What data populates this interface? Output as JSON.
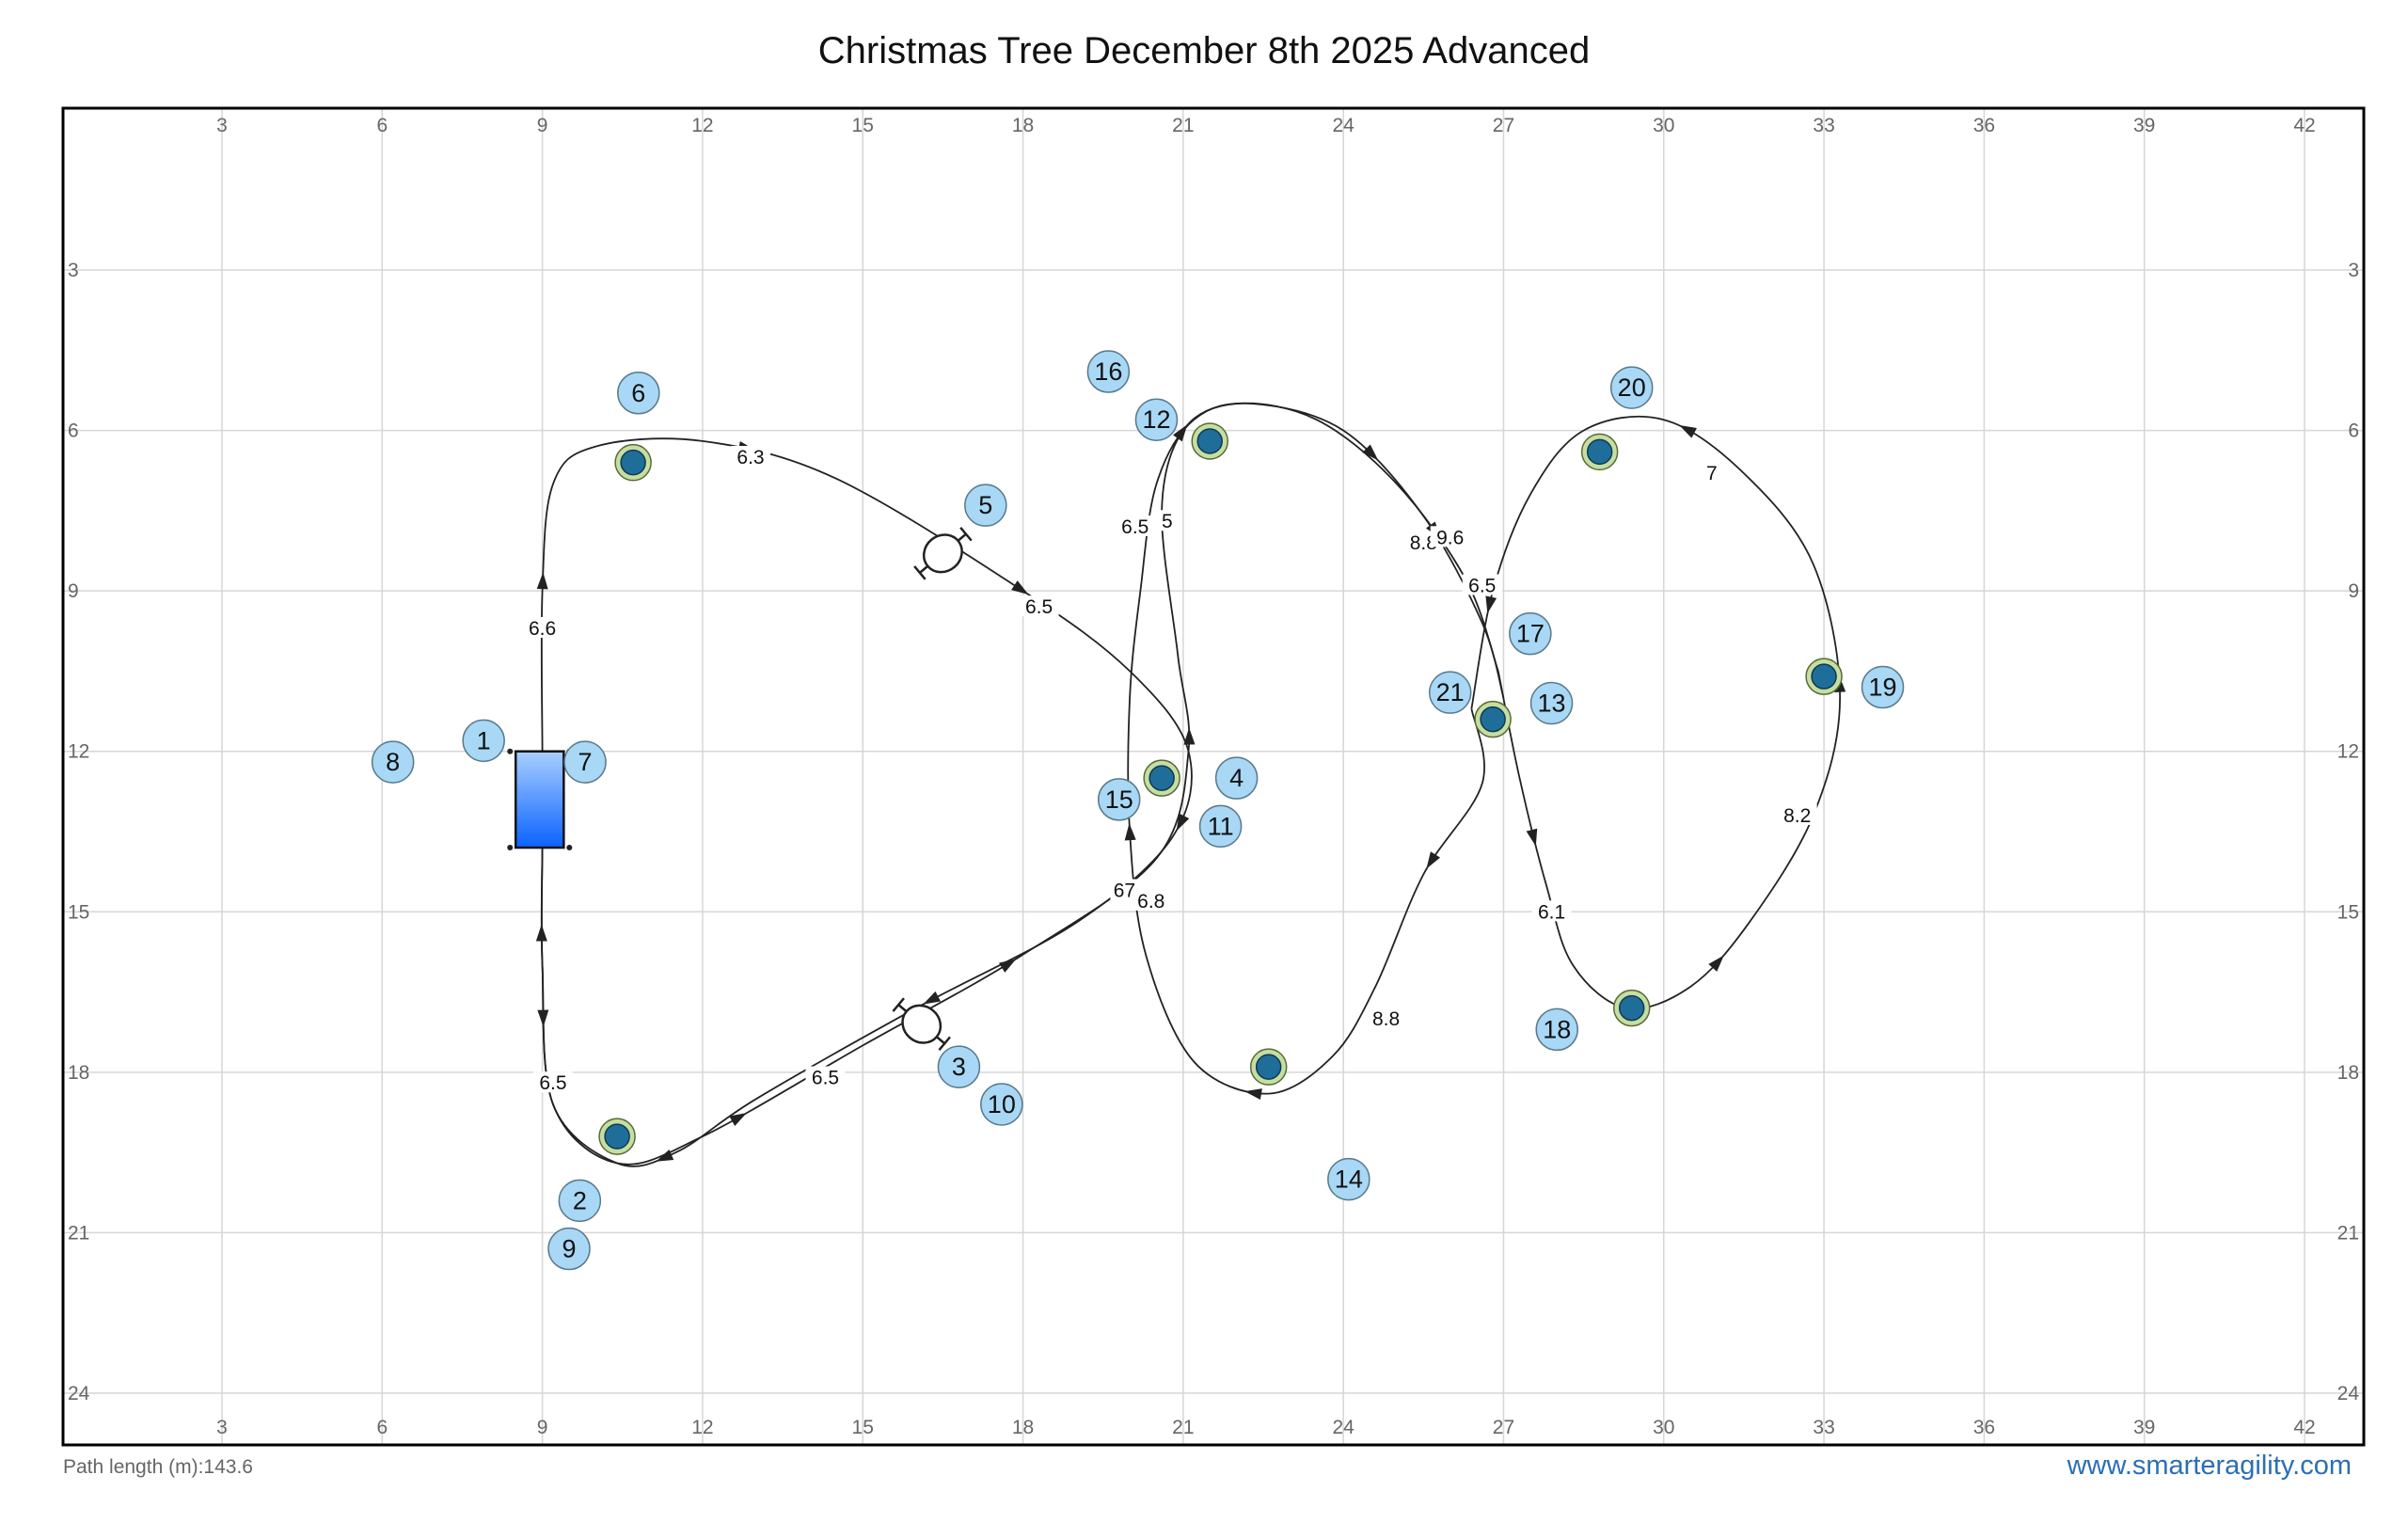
{
  "title": "Christmas Tree December 8th 2025 Advanced",
  "footer": {
    "path_length_label": "Path length (m):",
    "path_length_value": "143.6",
    "site": "www.smarteragility.com"
  },
  "colors": {
    "grid": "#d6d6d6",
    "border": "#000000",
    "number_fill": "#a8d8f5",
    "number_stroke": "#5a7a8a",
    "pole_outer": "#c8dea0",
    "pole_inner": "#1f6e99",
    "path": "#222222",
    "tunnel_top": "#a9cfff",
    "tunnel_bottom": "#0a62ff",
    "link": "#2a6fb5"
  },
  "field": {
    "x_range": [
      0,
      43
    ],
    "y_range": [
      0,
      25
    ],
    "tick_labels_x": [
      "3",
      "6",
      "9",
      "12",
      "15",
      "18",
      "21",
      "24",
      "27",
      "30",
      "33",
      "36",
      "39",
      "42"
    ],
    "tick_labels_y": [
      "3",
      "6",
      "9",
      "12",
      "15",
      "18",
      "21",
      "24"
    ]
  },
  "numbers": [
    {
      "label": "1",
      "x": 7.9,
      "y": 11.8
    },
    {
      "label": "2",
      "x": 9.7,
      "y": 20.4
    },
    {
      "label": "3",
      "x": 16.8,
      "y": 17.9
    },
    {
      "label": "4",
      "x": 22.0,
      "y": 12.5
    },
    {
      "label": "5",
      "x": 17.3,
      "y": 7.4
    },
    {
      "label": "6",
      "x": 10.8,
      "y": 5.3
    },
    {
      "label": "7",
      "x": 9.8,
      "y": 12.2
    },
    {
      "label": "8",
      "x": 6.2,
      "y": 12.2
    },
    {
      "label": "9",
      "x": 9.5,
      "y": 21.3
    },
    {
      "label": "10",
      "x": 17.6,
      "y": 18.6
    },
    {
      "label": "11",
      "x": 21.7,
      "y": 13.4
    },
    {
      "label": "12",
      "x": 20.5,
      "y": 5.8
    },
    {
      "label": "13",
      "x": 27.9,
      "y": 11.1
    },
    {
      "label": "14",
      "x": 24.1,
      "y": 20.0
    },
    {
      "label": "15",
      "x": 19.8,
      "y": 12.9
    },
    {
      "label": "16",
      "x": 19.6,
      "y": 4.9
    },
    {
      "label": "17",
      "x": 27.5,
      "y": 9.8
    },
    {
      "label": "18",
      "x": 28.0,
      "y": 17.2
    },
    {
      "label": "19",
      "x": 34.1,
      "y": 10.8
    },
    {
      "label": "20",
      "x": 29.4,
      "y": 5.2
    },
    {
      "label": "21",
      "x": 26.0,
      "y": 10.9
    }
  ],
  "poles": [
    {
      "x": 10.7,
      "y": 6.6
    },
    {
      "x": 21.5,
      "y": 6.2
    },
    {
      "x": 28.8,
      "y": 6.4
    },
    {
      "x": 20.6,
      "y": 12.5
    },
    {
      "x": 26.8,
      "y": 11.4
    },
    {
      "x": 33.0,
      "y": 10.6
    },
    {
      "x": 10.4,
      "y": 19.2
    },
    {
      "x": 22.6,
      "y": 17.9
    },
    {
      "x": 29.4,
      "y": 16.8
    }
  ],
  "jumps": [
    {
      "x": 16.5,
      "y": 8.3,
      "angle": -40
    },
    {
      "x": 16.1,
      "y": 17.1,
      "angle": 40
    }
  ],
  "tunnel": {
    "x1": 8.5,
    "y1": 12.0,
    "x2": 9.4,
    "y2": 13.8
  },
  "segment_labels": [
    {
      "text": "6.3",
      "x": 12.9,
      "y": 6.5
    },
    {
      "text": "6.6",
      "x": 9.0,
      "y": 9.7
    },
    {
      "text": "6.5",
      "x": 9.2,
      "y": 18.2
    },
    {
      "text": "6.5",
      "x": 14.3,
      "y": 18.1
    },
    {
      "text": "6.5",
      "x": 18.3,
      "y": 9.3
    },
    {
      "text": "6.5",
      "x": 20.1,
      "y": 7.8
    },
    {
      "text": "5",
      "x": 20.7,
      "y": 7.7
    },
    {
      "text": "67",
      "x": 19.9,
      "y": 14.6
    },
    {
      "text": "6.8",
      "x": 20.4,
      "y": 14.8
    },
    {
      "text": "8.8",
      "x": 25.5,
      "y": 8.1
    },
    {
      "text": "9.6",
      "x": 26.0,
      "y": 8.0
    },
    {
      "text": "6.5",
      "x": 26.6,
      "y": 8.9
    },
    {
      "text": "7",
      "x": 30.9,
      "y": 6.8
    },
    {
      "text": "8.2",
      "x": 32.5,
      "y": 13.2
    },
    {
      "text": "6.1",
      "x": 27.9,
      "y": 15.0
    },
    {
      "text": "8.8",
      "x": 24.8,
      "y": 17.0
    }
  ],
  "paths": [
    [
      [
        9.0,
        12.0
      ],
      [
        9.0,
        9.0
      ],
      [
        9.2,
        7.0
      ],
      [
        10.0,
        6.3
      ],
      [
        12.0,
        6.2
      ],
      [
        14.5,
        6.9
      ],
      [
        18.0,
        9.0
      ],
      [
        20.0,
        10.5
      ],
      [
        21.1,
        12.0
      ],
      [
        20.8,
        13.6
      ],
      [
        19.0,
        15.2
      ],
      [
        16.0,
        16.8
      ],
      [
        13.0,
        18.5
      ],
      [
        11.5,
        19.5
      ],
      [
        10.4,
        19.7
      ],
      [
        9.2,
        18.6
      ],
      [
        9.0,
        16.0
      ],
      [
        9.0,
        13.8
      ]
    ],
    [
      [
        9.0,
        13.8
      ],
      [
        9.0,
        16.0
      ],
      [
        9.2,
        18.6
      ],
      [
        10.4,
        19.7
      ],
      [
        12.0,
        19.2
      ],
      [
        15.0,
        17.5
      ],
      [
        18.0,
        15.8
      ],
      [
        20.5,
        14.0
      ],
      [
        21.1,
        12.0
      ],
      [
        20.9,
        10.2
      ],
      [
        20.6,
        7.5
      ],
      [
        21.0,
        6.0
      ],
      [
        22.0,
        5.5
      ],
      [
        23.5,
        5.8
      ],
      [
        25.0,
        7.0
      ],
      [
        26.3,
        8.8
      ],
      [
        26.9,
        10.5
      ]
    ],
    [
      [
        26.9,
        10.5
      ],
      [
        27.3,
        12.5
      ],
      [
        27.8,
        14.5
      ],
      [
        28.3,
        16.0
      ],
      [
        29.3,
        16.8
      ],
      [
        30.5,
        16.4
      ],
      [
        31.6,
        15.2
      ],
      [
        32.8,
        13.2
      ],
      [
        33.3,
        11.0
      ],
      [
        32.8,
        8.5
      ],
      [
        31.5,
        6.8
      ],
      [
        30.0,
        5.8
      ],
      [
        28.5,
        6.0
      ],
      [
        27.5,
        7.2
      ],
      [
        26.8,
        9.0
      ],
      [
        26.4,
        11.2
      ]
    ],
    [
      [
        26.4,
        11.2
      ],
      [
        26.6,
        12.6
      ],
      [
        25.5,
        14.3
      ],
      [
        24.6,
        16.4
      ],
      [
        23.8,
        17.7
      ],
      [
        22.6,
        18.4
      ],
      [
        21.2,
        17.8
      ],
      [
        20.3,
        15.8
      ],
      [
        20.0,
        13.5
      ],
      [
        20.0,
        11.0
      ],
      [
        20.2,
        9.0
      ],
      [
        20.5,
        7.0
      ],
      [
        21.2,
        5.8
      ],
      [
        22.3,
        5.5
      ],
      [
        24.0,
        6.0
      ],
      [
        25.5,
        7.6
      ],
      [
        26.6,
        9.6
      ],
      [
        27.0,
        11.0
      ]
    ]
  ]
}
